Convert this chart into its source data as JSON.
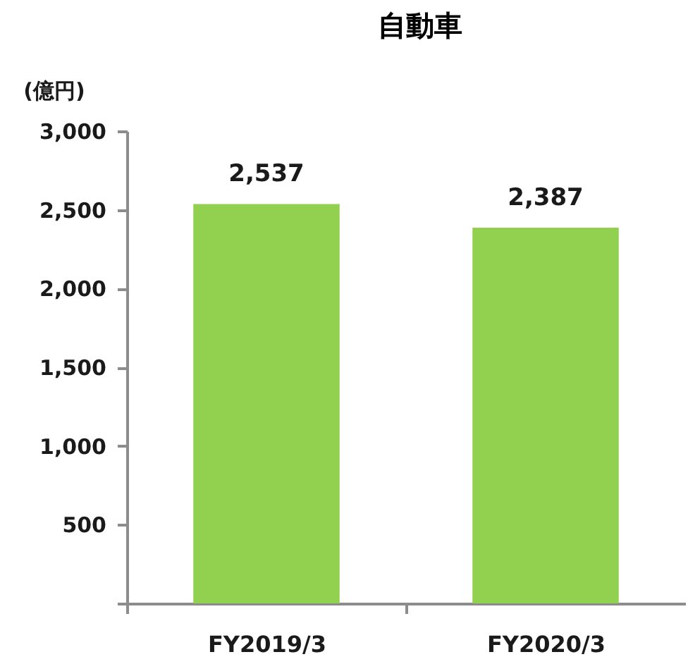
{
  "chart_data": {
    "type": "bar",
    "title": "自動車",
    "ylabel": "(億円)",
    "categories": [
      "FY2019/3",
      "FY2020/3"
    ],
    "values": [
      2537,
      2387
    ],
    "color": "#92d050",
    "value_labels": [
      "2,537",
      "2,387"
    ],
    "ylim": [
      0,
      3000
    ],
    "yticks": [
      {
        "value": 0,
        "label": null
      },
      500,
      {
        "value": 1000,
        "label": "1,000"
      },
      {
        "value": 1500,
        "label": "1,500"
      },
      {
        "value": 2000,
        "label": "2,000"
      },
      {
        "value": 2500,
        "label": "2,500"
      },
      {
        "value": 3000,
        "label": "3,000"
      }
    ]
  }
}
